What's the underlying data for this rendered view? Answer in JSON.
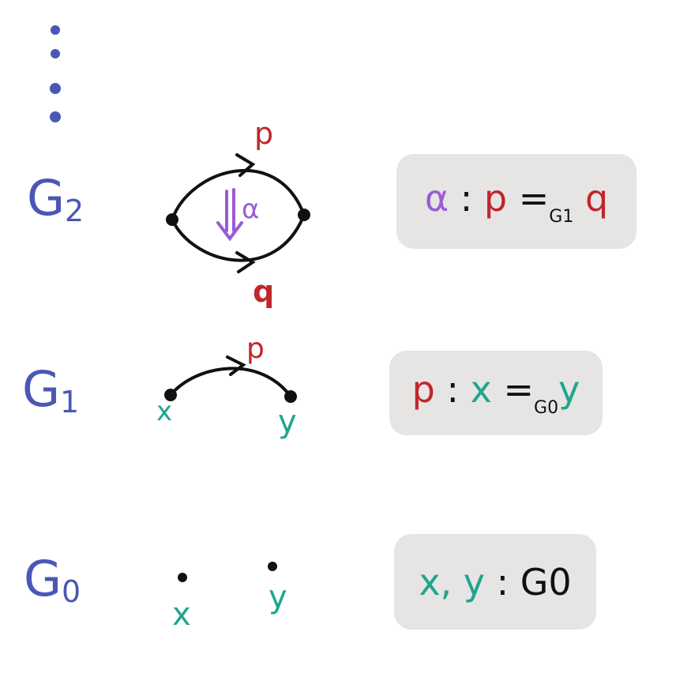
{
  "colors": {
    "level": "#4a57b6",
    "path": "#c0262c",
    "point": "#1fa58e",
    "homotopy": "#9a5cd6",
    "ink": "#111111",
    "box": "#e6e5e3"
  },
  "levels": {
    "g2": {
      "main": "G",
      "sub": "2"
    },
    "g1": {
      "main": "G",
      "sub": "1"
    },
    "g0": {
      "main": "G",
      "sub": "0"
    }
  },
  "diagram": {
    "g2": {
      "top_path": "p",
      "bottom_path": "q",
      "homotopy": "α"
    },
    "g1": {
      "path": "p",
      "source": "x",
      "target": "y"
    },
    "g0": {
      "source": "x",
      "target": "y"
    }
  },
  "formulas": {
    "g2": {
      "alpha": "α",
      "colon": ":",
      "p": "p",
      "eq": "=",
      "sub": "G1",
      "q": "q"
    },
    "g1": {
      "p": "p",
      "colon": ":",
      "x": "x",
      "eq": "=",
      "sub": "G0",
      "y": "y"
    },
    "g0": {
      "xy": "x, y",
      "colon": ":",
      "type": "G0"
    }
  }
}
